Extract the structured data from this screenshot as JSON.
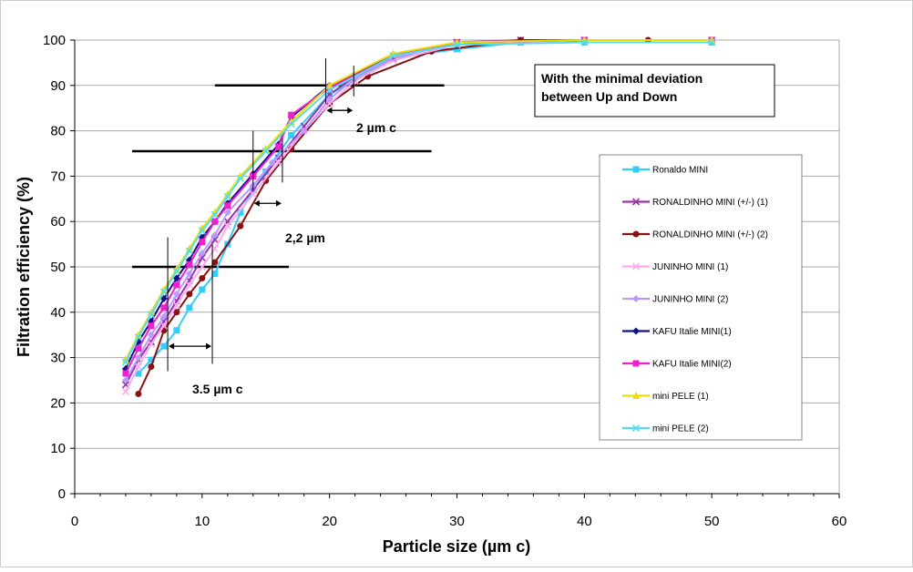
{
  "chart_data": {
    "type": "line",
    "xlabel": "Particle size (µm c)",
    "ylabel": "Filtration efficiency (%)",
    "xlim": [
      0,
      60
    ],
    "ylim": [
      0,
      100
    ],
    "xticks": [
      0,
      10,
      20,
      30,
      40,
      50,
      60
    ],
    "yticks": [
      0,
      10,
      20,
      30,
      40,
      50,
      60,
      70,
      80,
      90,
      100
    ],
    "grid": "horizontal",
    "legend_position": "right",
    "annotation_box": "With the minimal deviation between Up and Down",
    "annotations": [
      {
        "text": "2 µm c",
        "x1": 19.7,
        "x2": 21.9,
        "y": 84.5
      },
      {
        "text": "2,2 µm",
        "x1": 14.0,
        "x2": 16.3,
        "y": 64
      },
      {
        "text": "3.5 µm c",
        "x1": 7.3,
        "x2": 10.8,
        "y": 32.5
      }
    ],
    "reference_lines": [
      {
        "y": 90,
        "x1": 11,
        "x2": 29
      },
      {
        "y": 75.5,
        "x1": 4.5,
        "x2": 28
      },
      {
        "y": 50,
        "x1": 4.5,
        "x2": 16.8
      }
    ],
    "series": [
      {
        "name": "Ronaldo MINI",
        "color": "#33ccff",
        "marker": "square",
        "points": [
          [
            5,
            26.5
          ],
          [
            6,
            29.5
          ],
          [
            7,
            32.5
          ],
          [
            8,
            36
          ],
          [
            9,
            41
          ],
          [
            10,
            45
          ],
          [
            11,
            48.5
          ],
          [
            12,
            55
          ],
          [
            13,
            62
          ],
          [
            14,
            67
          ],
          [
            15,
            71
          ],
          [
            17,
            79
          ],
          [
            20,
            88
          ],
          [
            25,
            96
          ],
          [
            30,
            98
          ],
          [
            35,
            99.5
          ],
          [
            40,
            99.5
          ],
          [
            50,
            99.5
          ]
        ]
      },
      {
        "name": "RONALDINHO MINI (+/-) (1)",
        "color": "#9933aa",
        "marker": "x",
        "points": [
          [
            4,
            24
          ],
          [
            5,
            29.5
          ],
          [
            6,
            33.5
          ],
          [
            7,
            38
          ],
          [
            8,
            42.5
          ],
          [
            9,
            47
          ],
          [
            10,
            52
          ],
          [
            11,
            56
          ],
          [
            12,
            60
          ],
          [
            14,
            67
          ],
          [
            16,
            74
          ],
          [
            18,
            81
          ],
          [
            20,
            88
          ],
          [
            22,
            92
          ],
          [
            25,
            96
          ],
          [
            30,
            99.5
          ],
          [
            35,
            100
          ],
          [
            40,
            100
          ],
          [
            50,
            100
          ]
        ]
      },
      {
        "name": "RONALDINHO MINI (+/-) (2)",
        "color": "#881111",
        "marker": "circle",
        "points": [
          [
            5,
            22
          ],
          [
            6,
            28
          ],
          [
            7,
            36
          ],
          [
            8,
            40
          ],
          [
            9,
            44
          ],
          [
            10,
            47.5
          ],
          [
            11,
            51
          ],
          [
            13,
            59
          ],
          [
            15,
            69
          ],
          [
            17,
            76
          ],
          [
            20,
            86
          ],
          [
            23,
            92
          ],
          [
            28,
            97.5
          ],
          [
            35,
            100
          ],
          [
            45,
            100
          ],
          [
            50,
            100
          ]
        ]
      },
      {
        "name": "JUNINHO MINI (1)",
        "color": "#ffaaee",
        "marker": "x",
        "points": [
          [
            4,
            22.5
          ],
          [
            5,
            28
          ],
          [
            6,
            33
          ],
          [
            7,
            37
          ],
          [
            8,
            41.5
          ],
          [
            9,
            46
          ],
          [
            10,
            50
          ],
          [
            11,
            54
          ],
          [
            12,
            59
          ],
          [
            14,
            66
          ],
          [
            16,
            73
          ],
          [
            18,
            80
          ],
          [
            20,
            86
          ],
          [
            22,
            91
          ],
          [
            25,
            95.5
          ],
          [
            30,
            99
          ],
          [
            40,
            100
          ],
          [
            50,
            100
          ]
        ]
      },
      {
        "name": "JUNINHO MINI (2)",
        "color": "#bb99ff",
        "marker": "diamond",
        "points": [
          [
            4,
            25
          ],
          [
            5,
            30
          ],
          [
            6,
            35
          ],
          [
            7,
            39
          ],
          [
            8,
            44
          ],
          [
            9,
            48.5
          ],
          [
            10,
            53
          ],
          [
            11,
            57
          ],
          [
            12,
            62
          ],
          [
            14,
            68
          ],
          [
            15.5,
            73
          ],
          [
            18,
            80
          ],
          [
            20,
            87
          ],
          [
            22,
            91.5
          ],
          [
            25,
            96
          ],
          [
            30,
            99.5
          ],
          [
            40,
            100
          ],
          [
            50,
            100
          ]
        ]
      },
      {
        "name": "KAFU Italie MINI(1)",
        "color": "#111188",
        "marker": "diamond",
        "points": [
          [
            4,
            27.5
          ],
          [
            5,
            33.5
          ],
          [
            6,
            38
          ],
          [
            7,
            43
          ],
          [
            8,
            47.5
          ],
          [
            9,
            51.5
          ],
          [
            10,
            56.5
          ],
          [
            11,
            60
          ],
          [
            12,
            64
          ],
          [
            14,
            70.5
          ],
          [
            16,
            77
          ],
          [
            17,
            83
          ],
          [
            20,
            90
          ],
          [
            25,
            96.5
          ],
          [
            30,
            99.5
          ],
          [
            40,
            100
          ],
          [
            50,
            100
          ]
        ]
      },
      {
        "name": "KAFU Italie MINI(2)",
        "color": "#ee22cc",
        "marker": "square",
        "points": [
          [
            4,
            26.5
          ],
          [
            5,
            32
          ],
          [
            6,
            37
          ],
          [
            7,
            41
          ],
          [
            8,
            46
          ],
          [
            9,
            50.5
          ],
          [
            10,
            55.5
          ],
          [
            11,
            60
          ],
          [
            12,
            63.5
          ],
          [
            14,
            70
          ],
          [
            16,
            76.5
          ],
          [
            17,
            83.5
          ],
          [
            20,
            89.5
          ],
          [
            25,
            96.5
          ],
          [
            30,
            99.5
          ],
          [
            40,
            100
          ],
          [
            50,
            100
          ]
        ]
      },
      {
        "name": "mini PELE (1)",
        "color": "#eedd00",
        "marker": "triangle",
        "points": [
          [
            4,
            29.5
          ],
          [
            5,
            35
          ],
          [
            6,
            40
          ],
          [
            7,
            45
          ],
          [
            8,
            49.5
          ],
          [
            9,
            54
          ],
          [
            10,
            58.5
          ],
          [
            11,
            62
          ],
          [
            12,
            66
          ],
          [
            13,
            70
          ],
          [
            15,
            76
          ],
          [
            17,
            82
          ],
          [
            20,
            90
          ],
          [
            25,
            97
          ],
          [
            30,
            99.5
          ],
          [
            40,
            100
          ],
          [
            50,
            100
          ]
        ]
      },
      {
        "name": "mini PELE (2)",
        "color": "#55ddee",
        "marker": "x",
        "points": [
          [
            4,
            29
          ],
          [
            5,
            34.5
          ],
          [
            6,
            39.5
          ],
          [
            7,
            44.5
          ],
          [
            8,
            49
          ],
          [
            9,
            53.5
          ],
          [
            10,
            58
          ],
          [
            11,
            61.5
          ],
          [
            12,
            65.5
          ],
          [
            13,
            69.5
          ],
          [
            15,
            75.5
          ],
          [
            17,
            81.5
          ],
          [
            20,
            89
          ],
          [
            25,
            96.5
          ],
          [
            30,
            99
          ],
          [
            40,
            99.5
          ],
          [
            50,
            99.5
          ]
        ]
      }
    ]
  }
}
